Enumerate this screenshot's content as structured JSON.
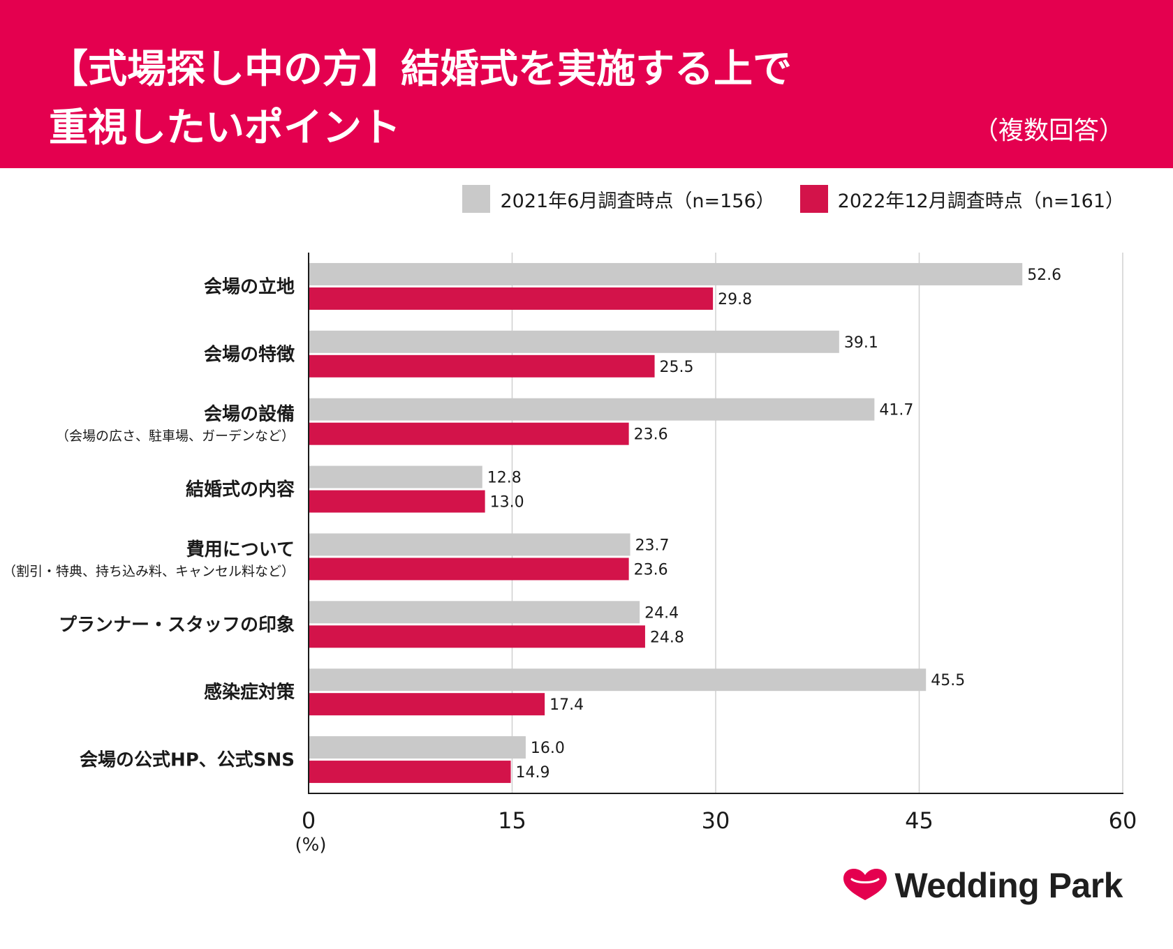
{
  "header": {
    "title_line1": "【式場探し中の方】結婚式を実施する上で",
    "title_line2": "重視したいポイント",
    "note": "（複数回答）"
  },
  "colors": {
    "brand": "#e4004f",
    "series_2021": "#c9c9c9",
    "series_2022": "#d3134a",
    "grid": "#d0d0d0",
    "axis": "#1a1a1a"
  },
  "logo": {
    "text": "Wedding Park",
    "icon": "heart-icon"
  },
  "chart_data": {
    "type": "bar",
    "orientation": "horizontal",
    "title": "【式場探し中の方】結婚式を実施する上で重視したいポイント",
    "subtitle": "（複数回答）",
    "xlabel": "(%)",
    "xlim": [
      0,
      60
    ],
    "xticks": [
      0,
      15,
      30,
      45,
      60
    ],
    "grid": true,
    "legend_position": "top-right",
    "categories": [
      {
        "label": "会場の立地",
        "sub": ""
      },
      {
        "label": "会場の特徴",
        "sub": ""
      },
      {
        "label": "会場の設備",
        "sub": "（会場の広さ、駐車場、ガーデンなど）"
      },
      {
        "label": "結婚式の内容",
        "sub": ""
      },
      {
        "label": "費用について",
        "sub": "（割引・特典、持ち込み料、キャンセル料など）"
      },
      {
        "label": "プランナー・スタッフの印象",
        "sub": ""
      },
      {
        "label": "感染症対策",
        "sub": ""
      },
      {
        "label": "会場の公式HP、公式SNS",
        "sub": ""
      }
    ],
    "series": [
      {
        "name": "2021年6月調査時点（n=156）",
        "values": [
          52.6,
          39.1,
          41.7,
          12.8,
          23.7,
          24.4,
          45.5,
          16.0
        ]
      },
      {
        "name": "2022年12月調査時点（n=161）",
        "values": [
          29.8,
          25.5,
          23.6,
          13.0,
          23.6,
          24.8,
          17.4,
          14.9
        ]
      }
    ]
  }
}
